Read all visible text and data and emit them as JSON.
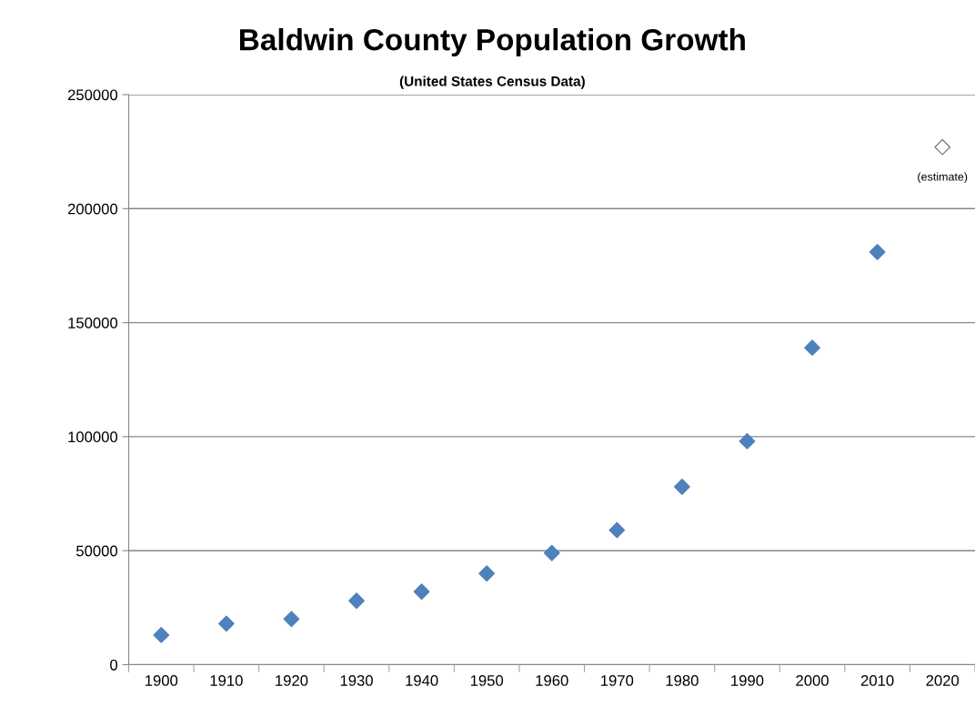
{
  "chart_data": {
    "type": "scatter",
    "title": "Baldwin County Population Growth",
    "subtitle": "(United States Census Data)",
    "categories": [
      "1900",
      "1910",
      "1920",
      "1930",
      "1940",
      "1950",
      "1960",
      "1970",
      "1980",
      "1990",
      "2000",
      "2010",
      "2020"
    ],
    "series": [
      {
        "color": "#4f81bd",
        "values": [
          13000,
          18000,
          20000,
          28000,
          32000,
          40000,
          49000,
          59000,
          78000,
          98000,
          139000,
          181000,
          null
        ]
      },
      {
        "color": "#ffffff",
        "values": [
          null,
          null,
          null,
          null,
          null,
          null,
          null,
          null,
          null,
          null,
          null,
          null,
          227000
        ]
      }
    ],
    "annotations": [
      {
        "text": "(estimate)",
        "x": "2020",
        "y": 227000
      }
    ],
    "ylim": [
      0,
      250000
    ],
    "yticks": [
      0,
      50000,
      100000,
      150000,
      200000,
      250000
    ],
    "grid": "y",
    "marker": "diamond",
    "legend": false
  }
}
